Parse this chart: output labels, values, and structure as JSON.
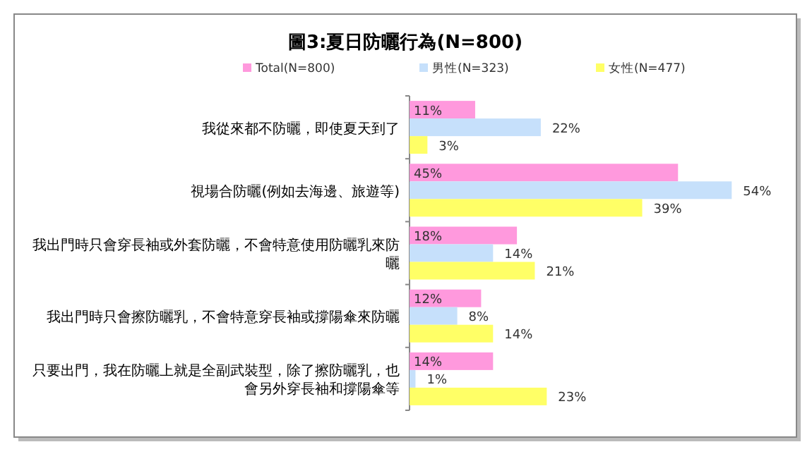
{
  "chart_data": {
    "type": "bar",
    "orientation": "horizontal",
    "title": "圖3:夏日防曬行為(N=800)",
    "legend": "top",
    "categories": [
      "我從來都不防曬，即使夏天到了",
      "視場合防曬(例如去海邊、旅遊等)",
      "我出門時只會穿長袖或外套防曬，不會特意使用防曬乳來防曬",
      "我出門時只會擦防曬乳，不會特意穿長袖或撐陽傘來防曬",
      "只要出門，我在防曬上就是全副武裝型，除了擦防曬乳，也會另外穿長袖和撐陽傘等"
    ],
    "series": [
      {
        "name": "Total(N=800)",
        "color": "#ff99dd",
        "values": [
          11,
          45,
          18,
          12,
          14
        ],
        "value_labels": [
          "11%",
          "45%",
          "18%",
          "12%",
          "14%"
        ]
      },
      {
        "name": "男性(N=323)",
        "color": "#c6e0fb",
        "values": [
          22,
          54,
          14,
          8,
          1
        ],
        "value_labels": [
          "22%",
          "54%",
          "14%",
          "8%",
          "1%"
        ]
      },
      {
        "name": "女性(N=477)",
        "color": "#ffff66",
        "values": [
          3,
          39,
          21,
          14,
          23
        ],
        "value_labels": [
          "3%",
          "39%",
          "21%",
          "14%",
          "23%"
        ]
      }
    ]
  }
}
